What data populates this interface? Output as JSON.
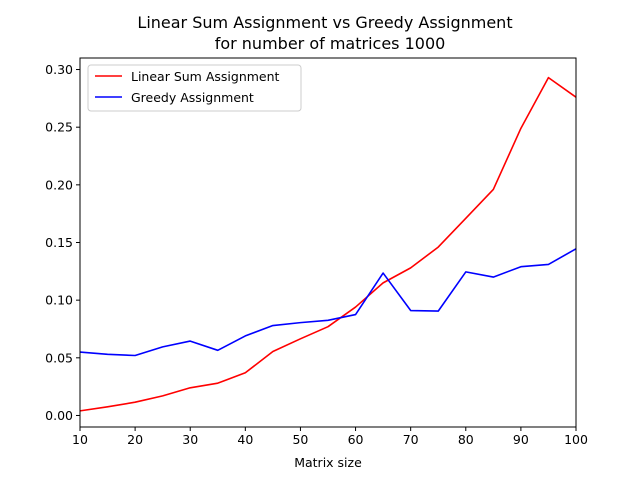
{
  "chart_data": {
    "type": "line",
    "title_line1": "Linear Sum Assignment vs Greedy Assignment",
    "title_line2": "for number of matrices 1000",
    "xlabel": "Matrix size",
    "ylabel": "",
    "x": [
      10,
      15,
      20,
      25,
      30,
      35,
      40,
      45,
      50,
      55,
      60,
      65,
      70,
      75,
      80,
      85,
      90,
      95,
      100
    ],
    "xlim": [
      10,
      100
    ],
    "ylim": [
      -0.01,
      0.31
    ],
    "xticks": [
      10,
      20,
      30,
      40,
      50,
      60,
      70,
      80,
      90,
      100
    ],
    "yticks": [
      0.0,
      0.05,
      0.1,
      0.15,
      0.2,
      0.25,
      0.3
    ],
    "ytick_labels": [
      "0.00",
      "0.05",
      "0.10",
      "0.15",
      "0.20",
      "0.25",
      "0.30"
    ],
    "legend_position": "upper-left",
    "grid": false,
    "series": [
      {
        "name": "Linear Sum Assignment",
        "color": "#ff0000",
        "values": [
          0.004,
          0.0075,
          0.0115,
          0.017,
          0.024,
          0.028,
          0.037,
          0.0555,
          0.0665,
          0.077,
          0.094,
          0.115,
          0.128,
          0.146,
          0.171,
          0.196,
          0.249,
          0.293,
          0.276
        ]
      },
      {
        "name": "Greedy Assignment",
        "color": "#0000ff",
        "values": [
          0.055,
          0.053,
          0.052,
          0.0595,
          0.0645,
          0.0565,
          0.069,
          0.078,
          0.0805,
          0.0825,
          0.0875,
          0.1235,
          0.091,
          0.0905,
          0.1245,
          0.12,
          0.129,
          0.131,
          0.1445
        ]
      }
    ]
  }
}
